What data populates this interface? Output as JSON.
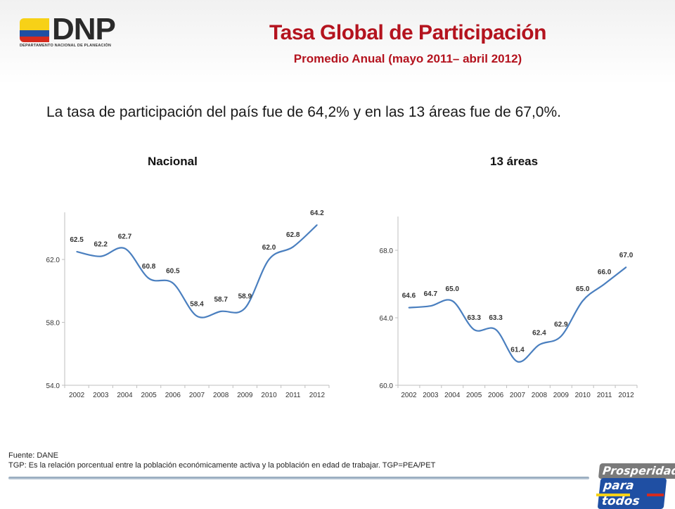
{
  "header": {
    "logo_text": "DNP",
    "logo_subtext": "DEPARTAMENTO NACIONAL DE PLANEACIÓN",
    "title": "Tasa Global de Participación",
    "subtitle": "Promedio Anual (mayo 2011– abril 2012)"
  },
  "lead_text": "La tasa de participación del país fue de 64,2% y en las 13 áreas fue de 67,0%.",
  "chart_data": [
    {
      "type": "line",
      "title": "Nacional",
      "xlabel": "",
      "ylabel": "",
      "x": [
        "2002",
        "2003",
        "2004",
        "2005",
        "2006",
        "2007",
        "2008",
        "2009",
        "2010",
        "2011",
        "2012"
      ],
      "series": [
        {
          "values": [
            62.5,
            62.2,
            62.7,
            60.8,
            60.5,
            58.4,
            58.7,
            58.9,
            62.0,
            62.8,
            64.2
          ]
        }
      ],
      "data_labels": [
        "62.5",
        "62.2",
        "62.7",
        "60.8",
        "60.5",
        "58.4",
        "58.7",
        "58.9",
        "62.0",
        "62.8",
        "64.2"
      ],
      "yticks": [
        54.0,
        58.0,
        62.0
      ],
      "ytick_labels": [
        "54.0",
        "58.0",
        "62.0"
      ],
      "ylim": [
        54.0,
        65.0
      ],
      "line_color": "#4a7fbf",
      "grid": false,
      "legend": "none"
    },
    {
      "type": "line",
      "title": "13 áreas",
      "xlabel": "",
      "ylabel": "",
      "x": [
        "2002",
        "2003",
        "2004",
        "2005",
        "2006",
        "2007",
        "2008",
        "2009",
        "2010",
        "2011",
        "2012"
      ],
      "series": [
        {
          "values": [
            64.6,
            64.7,
            65.0,
            63.3,
            63.3,
            61.4,
            62.4,
            62.9,
            65.0,
            66.0,
            67.0
          ]
        }
      ],
      "data_labels": [
        "64.6",
        "64.7",
        "65.0",
        "63.3",
        "63.3",
        "61.4",
        "62.4",
        "62.9",
        "65.0",
        "66.0",
        "67.0"
      ],
      "yticks": [
        60.0,
        64.0,
        68.0
      ],
      "ytick_labels": [
        "60.0",
        "64.0",
        "68.0"
      ],
      "ylim": [
        60.0,
        70.0
      ],
      "line_color": "#4a7fbf",
      "grid": false,
      "legend": "none"
    }
  ],
  "footer": {
    "source": "Fuente: DANE",
    "note": "TGP: Es la relación porcentual entre la población económicamente activa y la población  en edad de trabajar. TGP=PEA/PET"
  },
  "badge": {
    "line1": "Prosperidad",
    "line2": "para todos"
  },
  "colors": {
    "title_red": "#b4131e",
    "axis_gray": "#bfbfbf",
    "flag_yellow": "#f7d117",
    "flag_blue": "#1f4fa3",
    "flag_red": "#d52b1e"
  }
}
